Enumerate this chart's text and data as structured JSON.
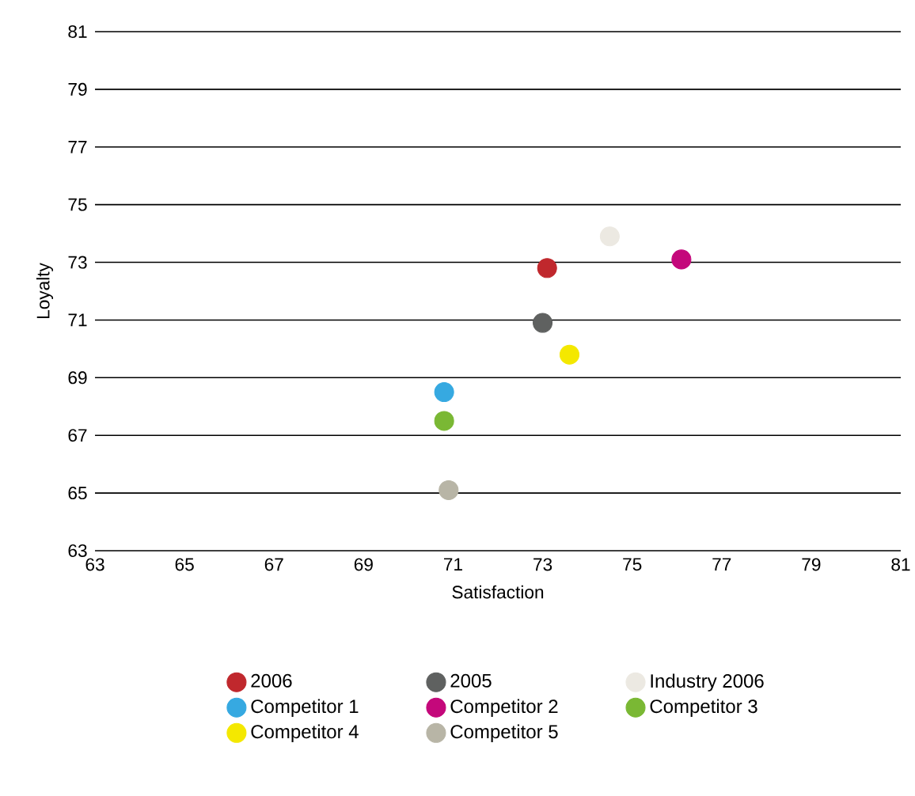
{
  "chart_data": {
    "type": "scatter",
    "xlabel": "Satisfaction",
    "ylabel": "Loyalty",
    "xlim": [
      63,
      81
    ],
    "ylim": [
      63,
      81
    ],
    "xticks": [
      63,
      65,
      67,
      69,
      71,
      73,
      75,
      77,
      79,
      81
    ],
    "yticks": [
      63,
      65,
      67,
      69,
      71,
      73,
      75,
      77,
      79,
      81
    ],
    "grid": "y",
    "legend": "bottom",
    "marker": "circle",
    "series": [
      {
        "name": "2006",
        "color": "#c0282d",
        "x": [
          73.1
        ],
        "values": [
          72.8
        ]
      },
      {
        "name": "2005",
        "color": "#5f6160",
        "x": [
          73.0
        ],
        "values": [
          70.9
        ]
      },
      {
        "name": "Industry 2006",
        "color": "#ece9e2",
        "x": [
          74.5
        ],
        "values": [
          73.9
        ]
      },
      {
        "name": "Competitor 1",
        "color": "#36a9e1",
        "x": [
          70.8
        ],
        "values": [
          68.5
        ]
      },
      {
        "name": "Competitor 2",
        "color": "#c4087b",
        "x": [
          76.1
        ],
        "values": [
          73.1
        ]
      },
      {
        "name": "Competitor 3",
        "color": "#7ab834",
        "x": [
          70.8
        ],
        "values": [
          67.5
        ]
      },
      {
        "name": "Competitor 4",
        "color": "#f4e800",
        "x": [
          73.6
        ],
        "values": [
          69.8
        ]
      },
      {
        "name": "Competitor 5",
        "color": "#b8b5a6",
        "x": [
          70.9
        ],
        "values": [
          65.1
        ]
      }
    ]
  }
}
